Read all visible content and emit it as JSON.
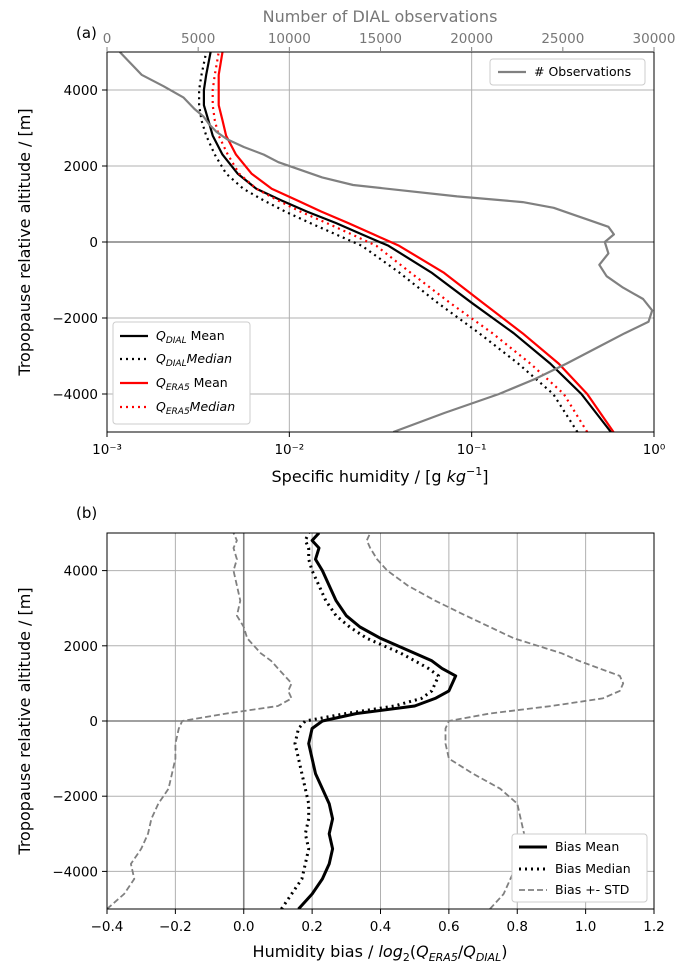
{
  "chart_data": [
    {
      "panel_label": "(a)",
      "type": "line",
      "xscale": "log",
      "xlabel": "Specific humidity / [g kg⁻¹]",
      "xlim": [
        0.001,
        1
      ],
      "xticks": [
        0.001,
        0.01,
        0.1,
        1
      ],
      "xtick_labels": [
        "10⁻³",
        "10⁻²",
        "10⁻¹",
        "10⁰"
      ],
      "ylabel": "Tropopause relative altitude / [m]",
      "ylim": [
        -5000,
        5000
      ],
      "yticks": [
        -4000,
        -2000,
        0,
        2000,
        4000
      ],
      "ytick_labels": [
        "−4000",
        "−2000",
        "0",
        "2000",
        "4000"
      ],
      "grid": true,
      "top_axis": {
        "label": "Number of DIAL observations",
        "xlim": [
          0,
          30000
        ],
        "xticks": [
          0,
          5000,
          10000,
          15000,
          20000,
          25000,
          30000
        ],
        "xtick_labels": [
          "0",
          "5000",
          "10000",
          "15000",
          "20000",
          "25000",
          "30000"
        ],
        "color": "#808080"
      },
      "legend_top": {
        "position": "top-right",
        "entries": [
          "# Observations"
        ]
      },
      "legend": {
        "position": "lower-left",
        "entries": [
          "Q_DIAL Mean",
          "Q_DIAL Median",
          "Q_ERA5 Mean",
          "Q_ERA5 Median"
        ]
      },
      "series": [
        {
          "name": "Q_DIAL Mean",
          "color": "#000000",
          "style": "solid",
          "width": 2.2,
          "axis": "bottom",
          "x": [
            0.58,
            0.4,
            0.27,
            0.17,
            0.1,
            0.06,
            0.035,
            0.025,
            0.018,
            0.0125,
            0.009,
            0.0066,
            0.0052,
            0.0043,
            0.0038,
            0.0036,
            0.0034,
            0.0034,
            0.0035,
            0.0036,
            0.0037
          ],
          "y": [
            -5000,
            -4000,
            -3200,
            -2400,
            -1600,
            -800,
            -100,
            200,
            500,
            800,
            1100,
            1400,
            1800,
            2300,
            2800,
            3200,
            3600,
            4000,
            4400,
            4700,
            5000
          ]
        },
        {
          "name": "Q_DIAL Median",
          "color": "#000000",
          "style": "dotted",
          "width": 2.2,
          "axis": "bottom",
          "x": [
            0.38,
            0.28,
            0.18,
            0.11,
            0.065,
            0.04,
            0.025,
            0.018,
            0.013,
            0.0095,
            0.0072,
            0.0056,
            0.0045,
            0.0039,
            0.0035,
            0.0033,
            0.0032,
            0.0032,
            0.0033,
            0.0034,
            0.0035
          ],
          "y": [
            -5000,
            -4000,
            -3200,
            -2400,
            -1600,
            -800,
            -100,
            200,
            500,
            800,
            1100,
            1400,
            1800,
            2300,
            2800,
            3200,
            3600,
            4000,
            4400,
            4700,
            5000
          ]
        },
        {
          "name": "Q_ERA5 Mean",
          "color": "#ff0000",
          "style": "solid",
          "width": 2.2,
          "axis": "bottom",
          "x": [
            0.6,
            0.43,
            0.3,
            0.19,
            0.115,
            0.07,
            0.04,
            0.029,
            0.021,
            0.015,
            0.011,
            0.008,
            0.0062,
            0.0051,
            0.0045,
            0.0043,
            0.0041,
            0.0041,
            0.0041,
            0.0042,
            0.0043
          ],
          "y": [
            -5000,
            -4000,
            -3200,
            -2400,
            -1600,
            -800,
            -100,
            200,
            500,
            800,
            1100,
            1400,
            1800,
            2300,
            2800,
            3200,
            3600,
            4000,
            4400,
            4700,
            5000
          ]
        },
        {
          "name": "Q_ERA5 Median",
          "color": "#ff0000",
          "style": "dotted",
          "width": 2.2,
          "axis": "bottom",
          "x": [
            0.43,
            0.32,
            0.21,
            0.13,
            0.076,
            0.046,
            0.03,
            0.022,
            0.016,
            0.0115,
            0.0086,
            0.0066,
            0.0053,
            0.0046,
            0.0041,
            0.0039,
            0.0038,
            0.0038,
            0.0039,
            0.004,
            0.0041
          ],
          "y": [
            -5000,
            -4000,
            -3200,
            -2400,
            -1600,
            -800,
            -100,
            200,
            500,
            800,
            1100,
            1400,
            1800,
            2300,
            2800,
            3200,
            3600,
            4000,
            4400,
            4700,
            5000
          ]
        },
        {
          "name": "# Observations",
          "color": "#808080",
          "style": "solid",
          "width": 2.2,
          "axis": "top",
          "x": [
            15700,
            18500,
            21500,
            23500,
            25200,
            26800,
            28400,
            29700,
            29900,
            29400,
            28300,
            27400,
            27000,
            27500,
            27300,
            27800,
            27500,
            26300,
            25700,
            24500,
            22800,
            19200,
            13500,
            11800,
            10600,
            9400,
            8600,
            7500,
            6600,
            6000,
            5600,
            5300,
            4800,
            4200,
            3100,
            1900,
            1300,
            700
          ],
          "y": [
            -5000,
            -4500,
            -4000,
            -3600,
            -3200,
            -2800,
            -2400,
            -2100,
            -1800,
            -1500,
            -1200,
            -900,
            -600,
            -300,
            0,
            200,
            400,
            600,
            700,
            900,
            1050,
            1200,
            1500,
            1700,
            1900,
            2100,
            2300,
            2500,
            2700,
            2900,
            3100,
            3300,
            3500,
            3800,
            4100,
            4400,
            4700,
            5000
          ]
        }
      ]
    },
    {
      "panel_label": "(b)",
      "type": "line",
      "xlabel": "Humidity bias / log₂(Q_ERA5/Q_DIAL)",
      "xlim": [
        -0.4,
        1.2
      ],
      "xticks": [
        -0.4,
        -0.2,
        0.0,
        0.2,
        0.4,
        0.6,
        0.8,
        1.0,
        1.2
      ],
      "xtick_labels": [
        "−0.4",
        "−0.2",
        "0.0",
        "0.2",
        "0.4",
        "0.6",
        "0.8",
        "1.0",
        "1.2"
      ],
      "ylabel": "Tropopause relative altitude / [m]",
      "ylim": [
        -5000,
        5000
      ],
      "yticks": [
        -4000,
        -2000,
        0,
        2000,
        4000
      ],
      "ytick_labels": [
        "−4000",
        "−2000",
        "0",
        "2000",
        "4000"
      ],
      "grid": true,
      "legend": {
        "position": "lower-right",
        "entries": [
          "Bias Mean",
          "Bias Median",
          "Bias +- STD"
        ]
      },
      "series": [
        {
          "name": "Bias Mean",
          "color": "#000000",
          "style": "solid",
          "width": 3,
          "x": [
            0.16,
            0.2,
            0.23,
            0.25,
            0.26,
            0.25,
            0.26,
            0.25,
            0.23,
            0.21,
            0.2,
            0.19,
            0.2,
            0.23,
            0.33,
            0.5,
            0.56,
            0.6,
            0.61,
            0.62,
            0.58,
            0.55,
            0.5,
            0.45,
            0.4,
            0.34,
            0.3,
            0.27,
            0.25,
            0.23,
            0.21,
            0.22,
            0.2,
            0.22
          ],
          "y": [
            -5000,
            -4600,
            -4200,
            -3800,
            -3400,
            -3000,
            -2600,
            -2200,
            -1800,
            -1400,
            -1000,
            -600,
            -200,
            0,
            200,
            400,
            600,
            800,
            1000,
            1200,
            1400,
            1600,
            1800,
            2000,
            2200,
            2500,
            2800,
            3200,
            3600,
            4000,
            4300,
            4600,
            4800,
            5000
          ]
        },
        {
          "name": "Bias Median",
          "color": "#000000",
          "style": "dotted",
          "width": 3,
          "x": [
            0.11,
            0.14,
            0.17,
            0.18,
            0.19,
            0.18,
            0.19,
            0.19,
            0.18,
            0.17,
            0.16,
            0.15,
            0.16,
            0.18,
            0.3,
            0.44,
            0.52,
            0.55,
            0.56,
            0.57,
            0.54,
            0.5,
            0.46,
            0.41,
            0.36,
            0.31,
            0.27,
            0.24,
            0.22,
            0.2,
            0.19,
            0.19,
            0.18,
            0.19
          ],
          "y": [
            -5000,
            -4600,
            -4200,
            -3800,
            -3400,
            -3000,
            -2600,
            -2200,
            -1800,
            -1400,
            -1000,
            -600,
            -200,
            0,
            200,
            400,
            600,
            800,
            1000,
            1200,
            1400,
            1600,
            1800,
            2000,
            2200,
            2500,
            2800,
            3200,
            3600,
            4000,
            4300,
            4600,
            4800,
            5000
          ]
        },
        {
          "name": "Bias +- STD",
          "color": "#808080",
          "style": "dashed",
          "width": 1.8,
          "x": [
            -0.4,
            -0.35,
            -0.32,
            -0.33,
            -0.3,
            -0.28,
            -0.27,
            -0.25,
            -0.22,
            -0.21,
            -0.2,
            -0.2,
            -0.19,
            -0.18,
            -0.05,
            0.1,
            0.14,
            0.13,
            0.14,
            0.12,
            0.1,
            0.08,
            0.05,
            0.03,
            0.01,
            0.0,
            -0.02,
            -0.01,
            -0.02,
            -0.03,
            -0.02,
            -0.03,
            -0.02,
            -0.03
          ],
          "y": [
            -5000,
            -4600,
            -4200,
            -3800,
            -3400,
            -3000,
            -2600,
            -2200,
            -1800,
            -1400,
            -1000,
            -600,
            -200,
            0,
            200,
            400,
            600,
            800,
            1000,
            1200,
            1400,
            1600,
            1800,
            2000,
            2200,
            2500,
            2800,
            3200,
            3600,
            4000,
            4300,
            4600,
            4800,
            5000
          ]
        },
        {
          "name": "Bias +- STD",
          "color": "#808080",
          "style": "dashed",
          "width": 1.8,
          "x": [
            0.72,
            0.76,
            0.78,
            0.8,
            0.81,
            0.82,
            0.81,
            0.8,
            0.75,
            0.67,
            0.6,
            0.59,
            0.59,
            0.6,
            0.72,
            0.9,
            1.05,
            1.1,
            1.11,
            1.1,
            1.04,
            0.98,
            0.93,
            0.86,
            0.79,
            0.72,
            0.65,
            0.56,
            0.48,
            0.42,
            0.39,
            0.37,
            0.36,
            0.37
          ],
          "y": [
            -5000,
            -4600,
            -4200,
            -3800,
            -3400,
            -3000,
            -2600,
            -2200,
            -1800,
            -1400,
            -1000,
            -600,
            -200,
            0,
            200,
            400,
            600,
            800,
            1000,
            1200,
            1400,
            1600,
            1800,
            2000,
            2200,
            2500,
            2800,
            3200,
            3600,
            4000,
            4300,
            4600,
            4800,
            5000
          ]
        }
      ]
    }
  ]
}
